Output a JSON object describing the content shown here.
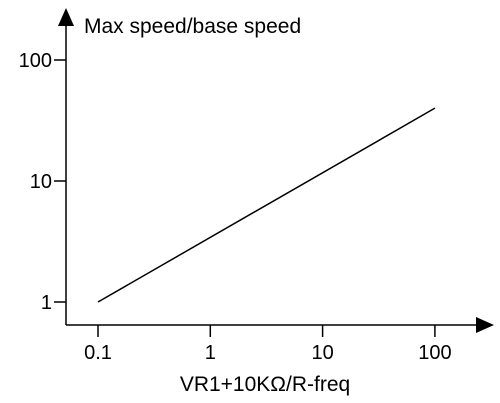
{
  "chart_data": {
    "type": "line",
    "xscale": "log",
    "yscale": "log",
    "xlabel": "VR1+10KΩ/R-freq",
    "ylabel": "Max speed/base speed",
    "xlim": [
      0.1,
      100
    ],
    "ylim": [
      1,
      100
    ],
    "x_ticks": [
      0.1,
      1,
      10,
      100
    ],
    "x_tick_labels": [
      "0.1",
      "1",
      "10",
      "100"
    ],
    "y_ticks": [
      1,
      10,
      100
    ],
    "y_tick_labels": [
      "1",
      "10",
      "100"
    ],
    "grid": false,
    "legend": "none",
    "series": [
      {
        "x": [
          0.1,
          100
        ],
        "y": [
          1,
          40
        ]
      }
    ],
    "colors": {
      "line": "#000000",
      "axes": "#000000"
    }
  }
}
